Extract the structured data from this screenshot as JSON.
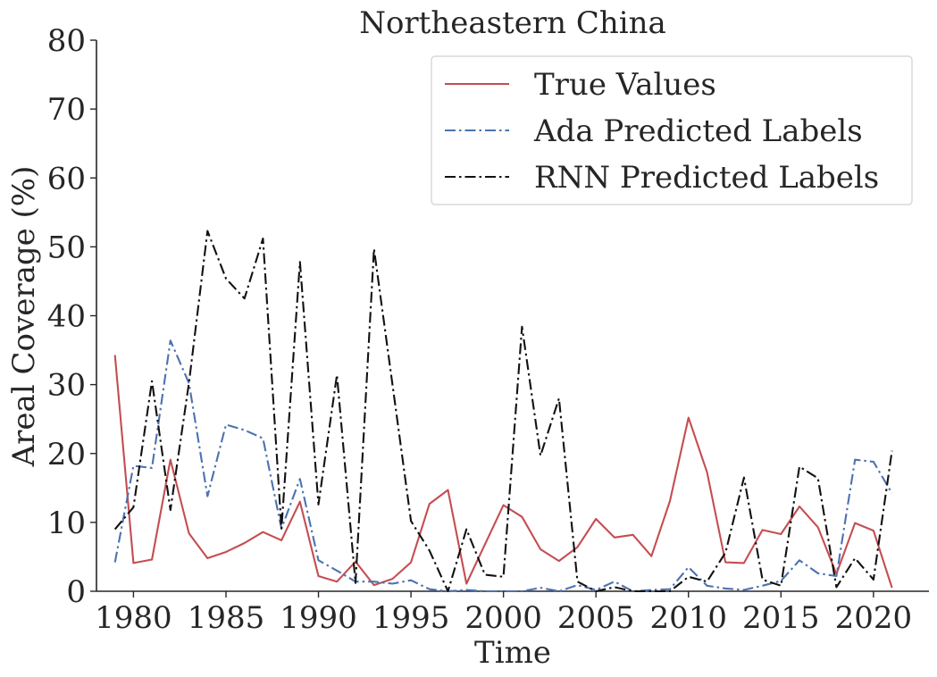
{
  "chart_data": {
    "type": "line",
    "title": "Northeastern China",
    "xlabel": "Time",
    "ylabel": "Areal Coverage (%)",
    "xlim": [
      1978,
      2023
    ],
    "ylim": [
      0,
      80
    ],
    "xticks": [
      1980,
      1985,
      1990,
      1995,
      2000,
      2005,
      2010,
      2015,
      2020
    ],
    "yticks": [
      0,
      10,
      20,
      30,
      40,
      50,
      60,
      70,
      80
    ],
    "grid": false,
    "legend_position": "top-right",
    "x": [
      1979,
      1980,
      1981,
      1982,
      1983,
      1984,
      1985,
      1986,
      1987,
      1988,
      1989,
      1990,
      1991,
      1992,
      1993,
      1994,
      1995,
      1996,
      1997,
      1998,
      1999,
      2000,
      2001,
      2002,
      2003,
      2004,
      2005,
      2006,
      2007,
      2008,
      2009,
      2010,
      2011,
      2012,
      2013,
      2014,
      2015,
      2016,
      2017,
      2018,
      2019,
      2020,
      2021
    ],
    "series": [
      {
        "name": "True Values",
        "color": "#c44e52",
        "dash": "solid",
        "values": [
          34.3,
          4.1,
          4.6,
          19.1,
          8.4,
          4.8,
          5.7,
          7.0,
          8.6,
          7.4,
          13.0,
          2.2,
          1.4,
          4.3,
          0.9,
          1.8,
          4.2,
          12.7,
          14.7,
          1.1,
          6.8,
          12.5,
          10.8,
          6.1,
          4.4,
          6.4,
          10.5,
          7.8,
          8.2,
          5.1,
          13.1,
          25.2,
          17.3,
          4.2,
          4.1,
          8.9,
          8.3,
          12.3,
          9.3,
          2.5,
          9.9,
          8.8,
          0.5
        ]
      },
      {
        "name": "Ada Predicted Labels",
        "color": "#4c72b0",
        "dash": "dashdot",
        "values": [
          4.2,
          18.2,
          17.9,
          36.4,
          30.2,
          13.8,
          24.2,
          23.4,
          22.2,
          9.1,
          16.3,
          4.5,
          3.0,
          1.4,
          1.4,
          1.1,
          1.6,
          0.3,
          0.0,
          0.2,
          0.0,
          0.0,
          0.0,
          0.5,
          0.0,
          0.9,
          0.2,
          1.4,
          0.0,
          0.2,
          0.3,
          3.5,
          0.8,
          0.4,
          0.2,
          0.8,
          1.5,
          4.5,
          2.6,
          2.2,
          19.1,
          18.8,
          14.2
        ]
      },
      {
        "name": "RNN Predicted Labels",
        "color": "#111111",
        "dash": "dashdot",
        "values": [
          9.0,
          12.2,
          30.5,
          11.8,
          30.3,
          52.3,
          45.4,
          42.5,
          51.2,
          9.1,
          47.8,
          12.6,
          31.4,
          1.2,
          49.7,
          30.0,
          10.2,
          5.9,
          0.0,
          9.0,
          2.4,
          2.1,
          38.4,
          19.7,
          28.0,
          1.4,
          0.0,
          0.6,
          0.0,
          0.0,
          0.0,
          2.1,
          1.4,
          5.6,
          16.5,
          1.7,
          0.8,
          18.1,
          16.4,
          0.6,
          4.8,
          1.7,
          20.4
        ]
      }
    ]
  }
}
